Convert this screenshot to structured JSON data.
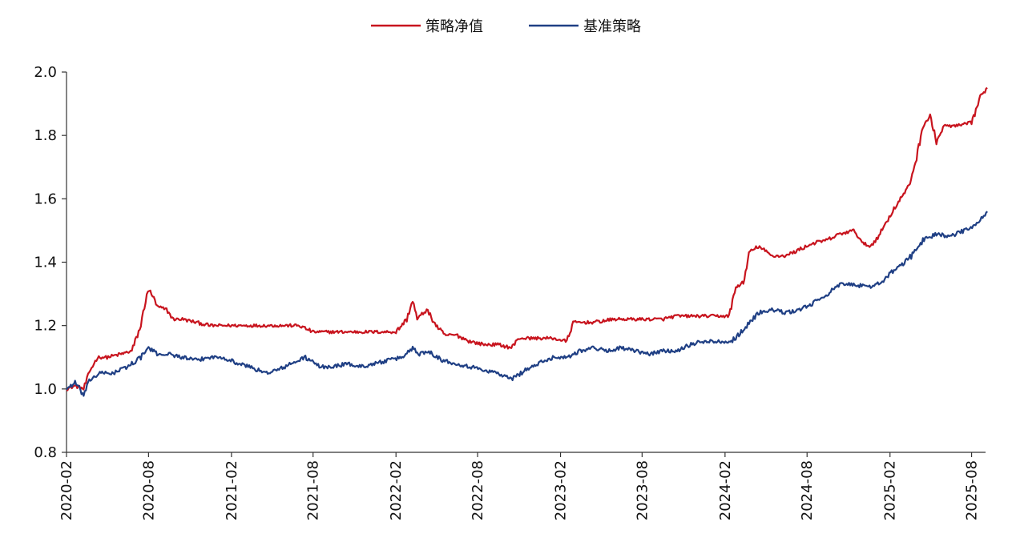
{
  "chart_data": {
    "type": "line",
    "title": "",
    "xlabel": "",
    "ylabel": "",
    "x_range": [
      "2020-02",
      "2025-09"
    ],
    "ylim": [
      0.8,
      2.0
    ],
    "y_ticks": [
      0.8,
      1.0,
      1.2,
      1.4,
      1.6,
      1.8,
      2.0
    ],
    "y_tick_labels": [
      "0.8",
      "1.0",
      "1.2",
      "1.4",
      "1.6",
      "1.8",
      "2.0"
    ],
    "x_ticks": [
      "2020-02",
      "2020-08",
      "2021-02",
      "2021-08",
      "2022-02",
      "2022-08",
      "2023-02",
      "2023-08",
      "2024-02",
      "2024-08",
      "2025-02",
      "2025-08"
    ],
    "grid": false,
    "legend": "top-center",
    "series": [
      {
        "name": "策略净值",
        "color": "#c8141e",
        "points": [
          [
            "2020-02-01",
            1.0
          ],
          [
            "2020-02-20",
            1.01
          ],
          [
            "2020-03-10",
            1.0
          ],
          [
            "2020-03-25",
            1.06
          ],
          [
            "2020-04-10",
            1.1
          ],
          [
            "2020-05-01",
            1.1
          ],
          [
            "2020-06-01",
            1.11
          ],
          [
            "2020-06-25",
            1.12
          ],
          [
            "2020-07-15",
            1.2
          ],
          [
            "2020-07-28",
            1.3
          ],
          [
            "2020-08-05",
            1.31
          ],
          [
            "2020-08-20",
            1.26
          ],
          [
            "2020-09-10",
            1.25
          ],
          [
            "2020-09-25",
            1.22
          ],
          [
            "2020-10-15",
            1.22
          ],
          [
            "2020-11-15",
            1.21
          ],
          [
            "2020-12-15",
            1.2
          ],
          [
            "2021-01-15",
            1.2
          ],
          [
            "2021-03-01",
            1.2
          ],
          [
            "2021-05-01",
            1.2
          ],
          [
            "2021-07-01",
            1.2
          ],
          [
            "2021-08-01",
            1.18
          ],
          [
            "2021-10-01",
            1.18
          ],
          [
            "2021-12-01",
            1.18
          ],
          [
            "2022-02-01",
            1.18
          ],
          [
            "2022-02-25",
            1.22
          ],
          [
            "2022-03-10",
            1.28
          ],
          [
            "2022-03-20",
            1.22
          ],
          [
            "2022-04-10",
            1.25
          ],
          [
            "2022-05-01",
            1.2
          ],
          [
            "2022-05-20",
            1.17
          ],
          [
            "2022-06-15",
            1.17
          ],
          [
            "2022-07-15",
            1.15
          ],
          [
            "2022-08-15",
            1.14
          ],
          [
            "2022-09-15",
            1.14
          ],
          [
            "2022-10-15",
            1.13
          ],
          [
            "2022-11-01",
            1.16
          ],
          [
            "2022-12-15",
            1.16
          ],
          [
            "2023-01-15",
            1.16
          ],
          [
            "2023-02-15",
            1.15
          ],
          [
            "2023-03-01",
            1.21
          ],
          [
            "2023-04-15",
            1.21
          ],
          [
            "2023-06-01",
            1.22
          ],
          [
            "2023-08-01",
            1.22
          ],
          [
            "2023-09-15",
            1.22
          ],
          [
            "2023-10-15",
            1.23
          ],
          [
            "2023-12-01",
            1.23
          ],
          [
            "2024-01-15",
            1.23
          ],
          [
            "2024-02-10",
            1.23
          ],
          [
            "2024-02-25",
            1.32
          ],
          [
            "2024-03-15",
            1.34
          ],
          [
            "2024-03-25",
            1.43
          ],
          [
            "2024-04-15",
            1.45
          ],
          [
            "2024-05-15",
            1.42
          ],
          [
            "2024-06-15",
            1.42
          ],
          [
            "2024-07-15",
            1.44
          ],
          [
            "2024-08-15",
            1.46
          ],
          [
            "2024-09-15",
            1.47
          ],
          [
            "2024-10-15",
            1.49
          ],
          [
            "2024-11-15",
            1.5
          ],
          [
            "2024-12-01",
            1.46
          ],
          [
            "2024-12-20",
            1.45
          ],
          [
            "2025-01-10",
            1.49
          ],
          [
            "2025-01-25",
            1.53
          ],
          [
            "2025-02-15",
            1.58
          ],
          [
            "2025-03-01",
            1.61
          ],
          [
            "2025-03-15",
            1.64
          ],
          [
            "2025-04-01",
            1.73
          ],
          [
            "2025-04-15",
            1.83
          ],
          [
            "2025-05-01",
            1.86
          ],
          [
            "2025-05-15",
            1.78
          ],
          [
            "2025-06-01",
            1.83
          ],
          [
            "2025-07-01",
            1.83
          ],
          [
            "2025-08-01",
            1.84
          ],
          [
            "2025-08-20",
            1.92
          ],
          [
            "2025-09-05",
            1.95
          ]
        ]
      },
      {
        "name": "基准策略",
        "color": "#1f3f84",
        "points": [
          [
            "2020-02-01",
            1.0
          ],
          [
            "2020-02-20",
            1.02
          ],
          [
            "2020-03-10",
            0.98
          ],
          [
            "2020-03-25",
            1.03
          ],
          [
            "2020-04-15",
            1.05
          ],
          [
            "2020-05-15",
            1.05
          ],
          [
            "2020-06-15",
            1.07
          ],
          [
            "2020-07-15",
            1.1
          ],
          [
            "2020-08-01",
            1.13
          ],
          [
            "2020-08-20",
            1.11
          ],
          [
            "2020-09-15",
            1.11
          ],
          [
            "2020-10-15",
            1.1
          ],
          [
            "2020-11-15",
            1.09
          ],
          [
            "2020-12-15",
            1.1
          ],
          [
            "2021-01-15",
            1.1
          ],
          [
            "2021-02-15",
            1.08
          ],
          [
            "2021-03-15",
            1.07
          ],
          [
            "2021-04-15",
            1.05
          ],
          [
            "2021-05-15",
            1.06
          ],
          [
            "2021-06-15",
            1.08
          ],
          [
            "2021-07-15",
            1.1
          ],
          [
            "2021-08-15",
            1.07
          ],
          [
            "2021-09-15",
            1.07
          ],
          [
            "2021-10-15",
            1.08
          ],
          [
            "2021-11-15",
            1.07
          ],
          [
            "2021-12-15",
            1.08
          ],
          [
            "2022-01-15",
            1.09
          ],
          [
            "2022-02-15",
            1.1
          ],
          [
            "2022-03-10",
            1.13
          ],
          [
            "2022-03-25",
            1.11
          ],
          [
            "2022-04-15",
            1.12
          ],
          [
            "2022-05-15",
            1.09
          ],
          [
            "2022-06-15",
            1.08
          ],
          [
            "2022-07-15",
            1.07
          ],
          [
            "2022-08-15",
            1.06
          ],
          [
            "2022-09-15",
            1.05
          ],
          [
            "2022-10-15",
            1.03
          ],
          [
            "2022-11-15",
            1.06
          ],
          [
            "2022-12-15",
            1.08
          ],
          [
            "2023-01-15",
            1.1
          ],
          [
            "2023-02-15",
            1.1
          ],
          [
            "2023-03-15",
            1.12
          ],
          [
            "2023-04-15",
            1.13
          ],
          [
            "2023-05-15",
            1.12
          ],
          [
            "2023-06-15",
            1.13
          ],
          [
            "2023-07-15",
            1.12
          ],
          [
            "2023-08-15",
            1.11
          ],
          [
            "2023-09-15",
            1.12
          ],
          [
            "2023-10-15",
            1.12
          ],
          [
            "2023-11-15",
            1.14
          ],
          [
            "2023-12-15",
            1.15
          ],
          [
            "2024-01-15",
            1.15
          ],
          [
            "2024-02-15",
            1.15
          ],
          [
            "2024-03-15",
            1.19
          ],
          [
            "2024-04-15",
            1.24
          ],
          [
            "2024-05-15",
            1.25
          ],
          [
            "2024-06-15",
            1.24
          ],
          [
            "2024-07-15",
            1.25
          ],
          [
            "2024-08-15",
            1.27
          ],
          [
            "2024-09-15",
            1.3
          ],
          [
            "2024-10-15",
            1.33
          ],
          [
            "2024-11-15",
            1.33
          ],
          [
            "2024-12-15",
            1.32
          ],
          [
            "2025-01-15",
            1.34
          ],
          [
            "2025-02-15",
            1.38
          ],
          [
            "2025-03-15",
            1.41
          ],
          [
            "2025-04-15",
            1.47
          ],
          [
            "2025-05-15",
            1.49
          ],
          [
            "2025-06-15",
            1.48
          ],
          [
            "2025-07-15",
            1.5
          ],
          [
            "2025-08-15",
            1.52
          ],
          [
            "2025-09-05",
            1.56
          ]
        ]
      }
    ]
  }
}
